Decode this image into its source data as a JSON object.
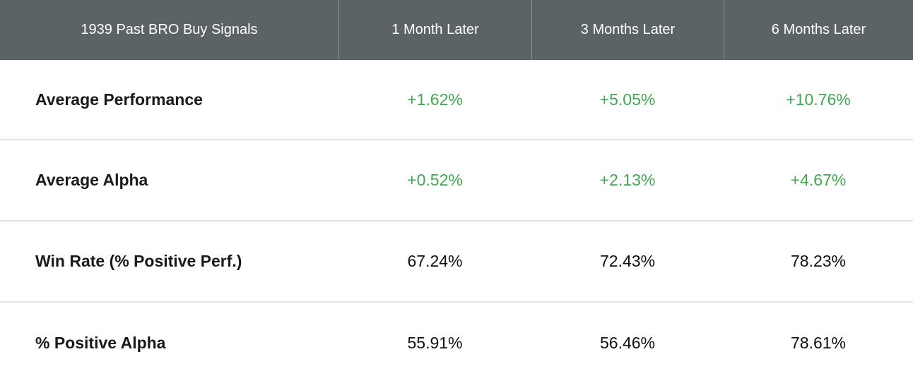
{
  "colors": {
    "header_bg": "#5b6366",
    "positive": "#3fa94f"
  },
  "table": {
    "headers": [
      "1939 Past BRO Buy Signals",
      "1 Month Later",
      "3 Months Later",
      "6 Months Later"
    ],
    "rows": [
      {
        "label": "Average Performance",
        "values": [
          "+1.62%",
          "+5.05%",
          "+10.76%"
        ],
        "positive": true
      },
      {
        "label": "Average Alpha",
        "values": [
          "+0.52%",
          "+2.13%",
          "+4.67%"
        ],
        "positive": true
      },
      {
        "label": "Win Rate (% Positive Perf.)",
        "values": [
          "67.24%",
          "72.43%",
          "78.23%"
        ],
        "positive": false
      },
      {
        "label": "% Positive Alpha",
        "values": [
          "55.91%",
          "56.46%",
          "78.61%"
        ],
        "positive": false
      }
    ]
  }
}
